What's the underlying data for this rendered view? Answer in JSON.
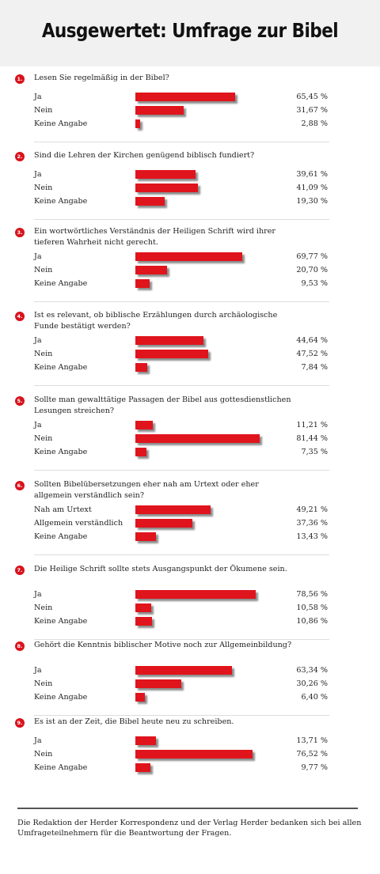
{
  "title": "Ausgewertet: Umfrage zur Bibel",
  "footer": "Die Redaktion der Herder Korrespondenz und der Verlag Herder bedanken sich bei allen Umfrageteilnehmern für die Beantwortung der Fragen.",
  "colors": {
    "bar": "#e0141c",
    "badge": "#d8121b"
  },
  "chart_data": {
    "type": "bar",
    "questions": [
      {
        "number": "1.",
        "text": "Lesen Sie regelmäßig in der Bibel?",
        "answers": [
          {
            "label": "Ja",
            "value": 65.45,
            "pct": "65,45 %"
          },
          {
            "label": "Nein",
            "value": 31.67,
            "pct": "31,67 %"
          },
          {
            "label": "Keine Angabe",
            "value": 2.88,
            "pct": "2,88 %"
          }
        ]
      },
      {
        "number": "2.",
        "text": "Sind die Lehren der Kirchen genügend biblisch fundiert?",
        "answers": [
          {
            "label": "Ja",
            "value": 39.61,
            "pct": "39,61 %"
          },
          {
            "label": "Nein",
            "value": 41.09,
            "pct": "41,09 %"
          },
          {
            "label": "Keine Angabe",
            "value": 19.3,
            "pct": "19,30 %"
          }
        ]
      },
      {
        "number": "3.",
        "text": "Ein wortwörtliches Verständnis der Heiligen Schrift wird ihrer tieferen Wahrheit nicht gerecht.",
        "answers": [
          {
            "label": "Ja",
            "value": 69.77,
            "pct": "69,77 %"
          },
          {
            "label": "Nein",
            "value": 20.7,
            "pct": "20,70 %"
          },
          {
            "label": "Keine Angabe",
            "value": 9.53,
            "pct": "9,53 %"
          }
        ]
      },
      {
        "number": "4.",
        "text": "Ist es relevant, ob biblische Erzählungen durch archäologische Funde bestätigt werden?",
        "answers": [
          {
            "label": "Ja",
            "value": 44.64,
            "pct": "44,64 %"
          },
          {
            "label": "Nein",
            "value": 47.52,
            "pct": "47,52 %"
          },
          {
            "label": "Keine Angabe",
            "value": 7.84,
            "pct": "7,84 %"
          }
        ]
      },
      {
        "number": "5.",
        "text": "Sollte man gewalttätige Passagen der Bibel aus gottesdienstlichen Lesungen streichen?",
        "answers": [
          {
            "label": "Ja",
            "value": 11.21,
            "pct": "11,21 %"
          },
          {
            "label": "Nein",
            "value": 81.44,
            "pct": "81,44 %"
          },
          {
            "label": "Keine Angabe",
            "value": 7.35,
            "pct": "7,35 %"
          }
        ]
      },
      {
        "number": "6.",
        "text": "Sollten Bibelübersetzungen eher nah am Urtext oder eher allgemein verständlich sein?",
        "answers": [
          {
            "label": "Nah am Urtext",
            "value": 49.21,
            "pct": "49,21 %"
          },
          {
            "label": "Allgemein verständlich",
            "value": 37.36,
            "pct": "37,36 %"
          },
          {
            "label": "Keine Angabe",
            "value": 13.43,
            "pct": "13,43 %"
          }
        ]
      },
      {
        "number": "7.",
        "text": "Die Heilige Schrift sollte stets Ausgangspunkt der Ökumene sein.",
        "answers": [
          {
            "label": "Ja",
            "value": 78.56,
            "pct": "78,56 %"
          },
          {
            "label": "Nein",
            "value": 10.58,
            "pct": "10,58 %"
          },
          {
            "label": "Keine Angabe",
            "value": 10.86,
            "pct": "10,86 %"
          }
        ]
      },
      {
        "number": "8.",
        "text": "Gehört die Kenntnis biblischer Motive noch zur Allgemeinbildung?",
        "answers": [
          {
            "label": "Ja",
            "value": 63.34,
            "pct": "63,34 %"
          },
          {
            "label": "Nein",
            "value": 30.26,
            "pct": "30,26 %"
          },
          {
            "label": "Keine Angabe",
            "value": 6.4,
            "pct": "6,40 %"
          }
        ]
      },
      {
        "number": "9.",
        "text": "Es ist an der Zeit, die Bibel heute neu zu schreiben.",
        "answers": [
          {
            "label": "Ja",
            "value": 13.71,
            "pct": "13,71 %"
          },
          {
            "label": "Nein",
            "value": 76.52,
            "pct": "76,52 %"
          },
          {
            "label": "Keine Angabe",
            "value": 9.77,
            "pct": "9,77 %"
          }
        ]
      }
    ]
  }
}
